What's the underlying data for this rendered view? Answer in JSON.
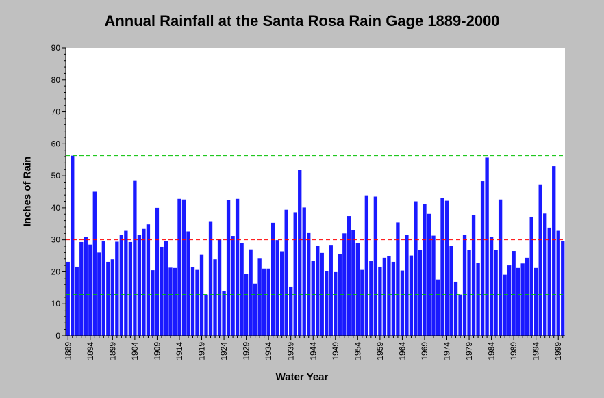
{
  "chart_data": {
    "type": "bar",
    "title": "Annual Rainfall at the Santa Rosa Rain Gage 1889-2000",
    "xlabel": "Water Year",
    "ylabel": "Inches of Rain",
    "ylim": [
      0,
      90
    ],
    "yticks": [
      0,
      10,
      20,
      30,
      40,
      50,
      60,
      70,
      80,
      90
    ],
    "xtick_labels": [
      "1889",
      "1894",
      "1899",
      "1904",
      "1909",
      "1914",
      "1919",
      "1924",
      "1929",
      "1934",
      "1939",
      "1944",
      "1949",
      "1954",
      "1959",
      "1964",
      "1969",
      "1974",
      "1979",
      "1984",
      "1989",
      "1994",
      "1999"
    ],
    "x_start": 1889,
    "x_end": 2000,
    "grid": false,
    "bar_color": "#1a1aff",
    "plot_background": "#ffffff",
    "reference_lines": [
      {
        "value": 56.3,
        "color": "#00c000",
        "style": "dashed"
      },
      {
        "value": 30.0,
        "color": "#ff0000",
        "style": "dashed"
      },
      {
        "value": 12.9,
        "color": "#00c000",
        "style": "dashed"
      }
    ],
    "series": [
      {
        "values": [
          23.1,
          56.3,
          21.6,
          29.3,
          30.8,
          28.5,
          45.0,
          26.0,
          29.5,
          23.1,
          23.9,
          29.4,
          31.6,
          32.8,
          29.3,
          48.6,
          31.6,
          33.4,
          34.8,
          20.5,
          40.0,
          27.8,
          29.5,
          21.3,
          21.2,
          42.8,
          42.6,
          32.6,
          21.5,
          20.6,
          25.3,
          12.9,
          35.8,
          23.9,
          30.1,
          13.9,
          42.4,
          31.2,
          42.8,
          28.9,
          19.4,
          27.0,
          16.3,
          24.1,
          21.0,
          21.0,
          35.3,
          29.9,
          26.4,
          39.4,
          15.4,
          38.6,
          51.9,
          40.1,
          32.3,
          23.3,
          28.2,
          25.9,
          20.3,
          28.4,
          19.9,
          25.5,
          32.0,
          37.4,
          33.1,
          28.9,
          20.6,
          43.9,
          23.3,
          43.5,
          21.6,
          24.4,
          24.8,
          23.1,
          35.4,
          20.4,
          31.5,
          25.1,
          42.0,
          26.8,
          41.1,
          38.1,
          31.3,
          17.6,
          43.0,
          42.2,
          28.2,
          16.9,
          12.9,
          31.5,
          26.9,
          37.7,
          22.7,
          48.3,
          55.7,
          30.8,
          26.8,
          42.6,
          19.1,
          22.0,
          26.5,
          21.2,
          22.6,
          24.4,
          37.2,
          21.2,
          47.3,
          38.2,
          33.8,
          53.0,
          32.8,
          29.7
        ]
      }
    ]
  }
}
